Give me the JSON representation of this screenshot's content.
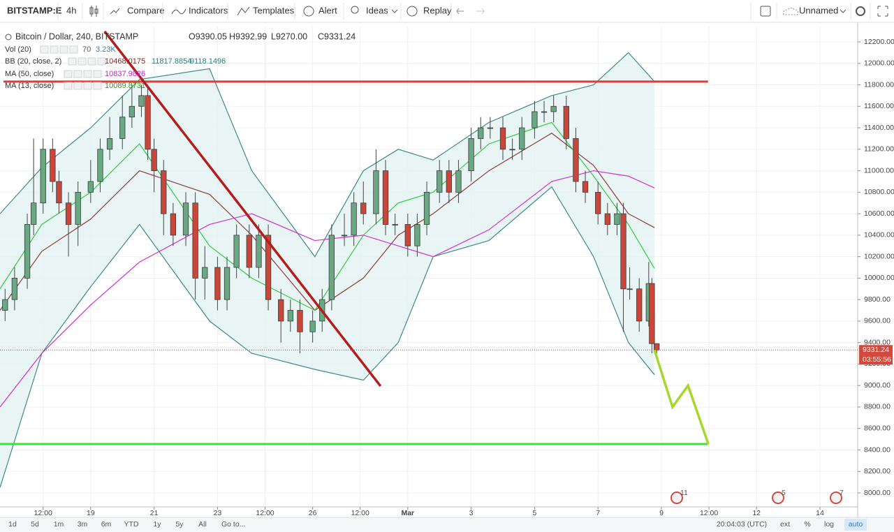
{
  "toolbar": {
    "symbol": "BITSTAMP:E",
    "interval": "4h",
    "compare": "Compare",
    "indicators": "Indicators",
    "templates": "Templates",
    "alert": "Alert",
    "ideas": "Ideas",
    "replay": "Replay",
    "layout": "Unnamed"
  },
  "legend": {
    "title": "Bitcoin / Dollar, 240, BITSTAMP",
    "ohlc": [
      "O9390.05",
      "H9392.99",
      "L9270.00",
      "C9331.24"
    ],
    "rows": [
      {
        "name": "Vol (20)",
        "values": [
          "70",
          "3.23K"
        ]
      },
      {
        "name": "BB (20, close, 2)",
        "values": [
          "10468.0175",
          "11817.8854",
          "9118.1496"
        ]
      },
      {
        "name": "MA (50, close)",
        "values": [
          "10837.9826"
        ]
      },
      {
        "name": "MA (13, close)",
        "values": [
          "10089.8731"
        ]
      }
    ]
  },
  "chart_data": {
    "type": "candlestick",
    "x": [
      16.3,
      16.6,
      17.0,
      17.2,
      17.5,
      17.8,
      18.0,
      18.3,
      18.6,
      19.0,
      19.3,
      19.6,
      20.0,
      20.3,
      20.6,
      20.8,
      21.0,
      21.3,
      21.6,
      22.0,
      22.3,
      22.6,
      23.0,
      23.3,
      23.6,
      24.0,
      24.3,
      24.6,
      25.0,
      25.3,
      25.6,
      26.0,
      26.3,
      26.6,
      27.0,
      27.3,
      27.6,
      28.0,
      28.3,
      28.6,
      29.0,
      29.3,
      29.6,
      30.0,
      30.3,
      30.6,
      31.0,
      31.3,
      31.6,
      32.0,
      32.3,
      32.6,
      33.0,
      33.3,
      33.6,
      34.0,
      34.3,
      34.6,
      35.0,
      35.3,
      35.6,
      35.8,
      36.0,
      36.3,
      36.6,
      36.7,
      36.85
    ],
    "open": [
      9700,
      9800,
      10000,
      10500,
      10700,
      11200,
      10900,
      10700,
      10500,
      10800,
      10900,
      11200,
      11300,
      11500,
      11600,
      11700,
      11200,
      11000,
      10600,
      10400,
      10700,
      10000,
      10100,
      9800,
      10100,
      10400,
      10100,
      10400,
      9800,
      9600,
      9700,
      9500,
      9600,
      9800,
      10400,
      10400,
      10700,
      10600,
      11000,
      10500,
      10500,
      10300,
      10500,
      10800,
      11000,
      10800,
      11000,
      11300,
      11400,
      11400,
      11200,
      11200,
      11400,
      11550,
      11550,
      11600,
      11300,
      10900,
      10800,
      10600,
      10500,
      10600,
      9900,
      9900,
      9600,
      9950,
      9390.05
    ],
    "high": [
      9900,
      10100,
      10600,
      11300,
      11300,
      11300,
      11000,
      10800,
      10900,
      11100,
      11300,
      11500,
      11700,
      11800,
      11800,
      11800,
      11300,
      11100,
      10700,
      10800,
      10800,
      10300,
      10200,
      10200,
      10500,
      10500,
      10500,
      10500,
      9900,
      9800,
      9800,
      9700,
      9900,
      10500,
      10600,
      10800,
      10900,
      11200,
      11100,
      10600,
      10600,
      10600,
      10900,
      11100,
      11100,
      11100,
      11400,
      11500,
      11500,
      11500,
      11300,
      11500,
      11650,
      11650,
      11700,
      11700,
      11400,
      11000,
      10900,
      10700,
      10700,
      10700,
      10100,
      10000,
      10150,
      10000,
      9392.99
    ],
    "low": [
      9600,
      9700,
      9900,
      10400,
      10600,
      10800,
      10600,
      10200,
      10300,
      10700,
      10800,
      11100,
      11200,
      11400,
      11500,
      11100,
      10800,
      10400,
      10300,
      10300,
      9800,
      9800,
      9700,
      9700,
      10000,
      10000,
      10000,
      9700,
      9400,
      9500,
      9300,
      9400,
      9500,
      9700,
      10300,
      10300,
      10500,
      10500,
      10400,
      10400,
      10200,
      10200,
      10400,
      10700,
      10700,
      10700,
      10900,
      11200,
      11300,
      11100,
      11100,
      11100,
      11300,
      11450,
      11450,
      11200,
      10800,
      10700,
      10500,
      10400,
      10400,
      9500,
      9800,
      9500,
      9550,
      9300,
      9270
    ],
    "close": [
      9800,
      10000,
      10500,
      10700,
      11200,
      10900,
      10700,
      10500,
      10800,
      10900,
      11200,
      11300,
      11500,
      11600,
      11700,
      11200,
      11000,
      10600,
      10400,
      10700,
      10000,
      10100,
      9800,
      10100,
      10400,
      10100,
      10400,
      9800,
      9600,
      9700,
      9500,
      9600,
      9800,
      10400,
      10400,
      10700,
      10600,
      11000,
      10500,
      10500,
      10300,
      10500,
      10800,
      11000,
      10800,
      11000,
      11300,
      11400,
      11400,
      11200,
      11200,
      11400,
      11550,
      11550,
      11600,
      11300,
      10900,
      10800,
      10600,
      10500,
      10600,
      9900,
      9900,
      9600,
      9950,
      9390.05,
      9331.24
    ],
    "up_color": "#6aa884",
    "down_color": "#c9463a",
    "overlays": [
      {
        "color": "#3f8a86",
        "x": [
          16.14,
          17.46,
          19.0,
          20.54,
          22.75,
          24.08,
          26.07,
          27.6,
          28.7,
          29.8,
          31.56,
          33.54,
          34.86,
          35.96,
          36.78
        ],
        "values": [
          10600,
          11030,
          11400,
          11850,
          11950,
          11000,
          10200,
          11000,
          11200,
          11100,
          11450,
          11700,
          11800,
          12100,
          11830
        ]
      },
      {
        "color": "#3f8a86",
        "x": [
          16.14,
          17.46,
          19.0,
          20.54,
          22.75,
          24.08,
          26.07,
          27.6,
          28.7,
          29.8,
          31.56,
          33.54,
          34.86,
          35.96,
          36.78
        ],
        "values": [
          8050,
          9300,
          9920,
          10500,
          9600,
          9300,
          9150,
          9050,
          9400,
          10200,
          10350,
          10850,
          10200,
          9400,
          9100
        ]
      },
      {
        "color": "#8b3a3a",
        "x": [
          16.14,
          17.46,
          19.0,
          20.54,
          22.75,
          24.08,
          26.07,
          27.6,
          28.7,
          29.8,
          31.56,
          33.54,
          34.86,
          35.96,
          36.78
        ],
        "values": [
          9700,
          10250,
          10550,
          11000,
          10780,
          10400,
          9700,
          10000,
          10400,
          10600,
          11000,
          11350,
          11050,
          10600,
          10470
        ]
      },
      {
        "color": "#2ecc40",
        "x": [
          16.14,
          17.46,
          19.0,
          20.54,
          22.75,
          24.08,
          26.07,
          27.6,
          28.7,
          29.8,
          31.56,
          33.54,
          34.86,
          35.96,
          36.78
        ],
        "values": [
          9900,
          10500,
          10800,
          11250,
          10300,
          10000,
          9700,
          10400,
          10700,
          10800,
          11250,
          11450,
          10950,
          10500,
          10090
        ]
      },
      {
        "color": "#d12fd1",
        "x": [
          16.14,
          17.46,
          19.0,
          20.54,
          22.75,
          24.08,
          26.07,
          27.6,
          28.7,
          29.8,
          31.56,
          33.54,
          34.86,
          35.96,
          36.78
        ],
        "values": [
          8800,
          9300,
          9750,
          10150,
          10500,
          10600,
          10350,
          10400,
          10300,
          10200,
          10450,
          10900,
          11000,
          10950,
          10840
        ]
      }
    ],
    "band_color": "#e3f2f1",
    "drawings": [
      {
        "color": "#e53935",
        "x": [
          16.25,
          38.47
        ],
        "values": [
          11830,
          11830
        ]
      },
      {
        "color": "#3ee03e",
        "x": [
          16.14,
          38.47
        ],
        "values": [
          8455,
          8455
        ]
      },
      {
        "color": "#b71c1c",
        "x": [
          19.44,
          28.14
        ],
        "values": [
          12298,
          8995
        ]
      },
      {
        "color": "#a6d82a",
        "x": [
          36.78,
          37.35,
          37.84,
          38.48
        ],
        "values": [
          9331.24,
          8800,
          9000,
          8455
        ]
      }
    ],
    "last_price": 9331.24,
    "countdown": "03:55:56",
    "xlim": [
      16.14,
      43.19
    ],
    "xticks": [
      {
        "value": 17.5,
        "label": "12:00"
      },
      {
        "value": 19,
        "label": "19"
      },
      {
        "value": 21,
        "label": "21"
      },
      {
        "value": 23,
        "label": "23"
      },
      {
        "value": 24.5,
        "label": "12:00"
      },
      {
        "value": 26,
        "label": "26"
      },
      {
        "value": 27.5,
        "label": "12:00"
      },
      {
        "value": 29,
        "label": "Mar"
      },
      {
        "value": 31,
        "label": "3"
      },
      {
        "value": 33,
        "label": "5"
      },
      {
        "value": 35,
        "label": "7"
      },
      {
        "value": 37,
        "label": "9"
      },
      {
        "value": 38.5,
        "label": "12:00"
      },
      {
        "value": 40,
        "label": "12"
      },
      {
        "value": 42,
        "label": "14"
      }
    ],
    "ylim": [
      7870,
      12343
    ],
    "yticks": [
      {
        "value": 8000,
        "label": "8000.00"
      },
      {
        "value": 8200,
        "label": "8200.00"
      },
      {
        "value": 8400,
        "label": "8400.00"
      },
      {
        "value": 8600,
        "label": "8600.00"
      },
      {
        "value": 8800,
        "label": "8800.00"
      },
      {
        "value": 9000,
        "label": "9000.00"
      },
      {
        "value": 9200,
        "label": "9200.00"
      },
      {
        "value": 9400,
        "label": "9400.00"
      },
      {
        "value": 9600,
        "label": "9600.00"
      },
      {
        "value": 9800,
        "label": "9800.00"
      },
      {
        "value": 10000,
        "label": "10000.00"
      },
      {
        "value": 10200,
        "label": "10200.00"
      },
      {
        "value": 10400,
        "label": "10400.00"
      },
      {
        "value": 10600,
        "label": "10600.00"
      },
      {
        "value": 10800,
        "label": "10800.00"
      },
      {
        "value": 11000,
        "label": "11000.00"
      },
      {
        "value": 11200,
        "label": "11200.00"
      },
      {
        "value": 11400,
        "label": "11400.00"
      },
      {
        "value": 11600,
        "label": "11600.00"
      },
      {
        "value": 11800,
        "label": "11800.00"
      },
      {
        "value": 12000,
        "label": "12000.00"
      },
      {
        "value": 12200,
        "label": "12200.00"
      }
    ],
    "grid": true
  },
  "events": [
    "11",
    "5",
    "7"
  ],
  "bottom_bar": {
    "ranges": [
      "1d",
      "5d",
      "1m",
      "3m",
      "6m",
      "YTD",
      "1y",
      "5y",
      "All"
    ],
    "goto": "Go to...",
    "clock": "20:04:03 (UTC)",
    "options": [
      "ext",
      "%",
      "log",
      "auto"
    ]
  }
}
